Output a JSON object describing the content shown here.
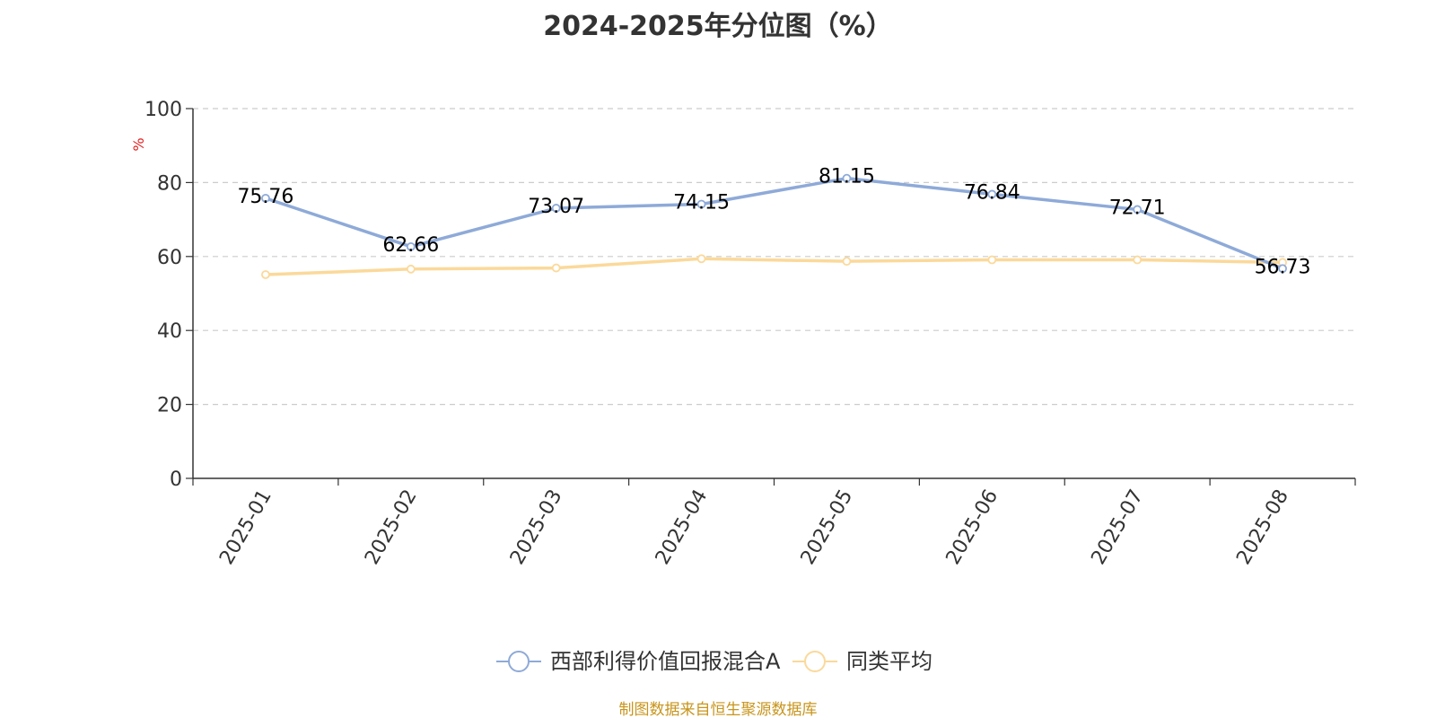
{
  "chart_data": {
    "type": "line",
    "title": "2024-2025年分位图（%）",
    "ylabel": "%",
    "xlabel": "",
    "categories": [
      "2025-01",
      "2025-02",
      "2025-03",
      "2025-04",
      "2025-05",
      "2025-06",
      "2025-07",
      "2025-08"
    ],
    "ylim": [
      0,
      100
    ],
    "yticks": [
      0,
      20,
      40,
      60,
      80,
      100
    ],
    "grid": true,
    "legend_position": "bottom",
    "series": [
      {
        "name": "西部利得价值回报混合A",
        "values": [
          75.76,
          62.66,
          73.07,
          74.15,
          81.15,
          76.84,
          72.71,
          56.73
        ],
        "color": "#8eaad8",
        "show_labels": true
      },
      {
        "name": "同类平均",
        "values": [
          55.1,
          56.6,
          56.9,
          59.4,
          58.7,
          59.1,
          59.1,
          58.4
        ],
        "color": "#fbd99a",
        "show_labels": false
      }
    ],
    "ylabel_color": "#e02020",
    "source": "制图数据来自恒生聚源数据库",
    "source_color": "#c8951c"
  }
}
